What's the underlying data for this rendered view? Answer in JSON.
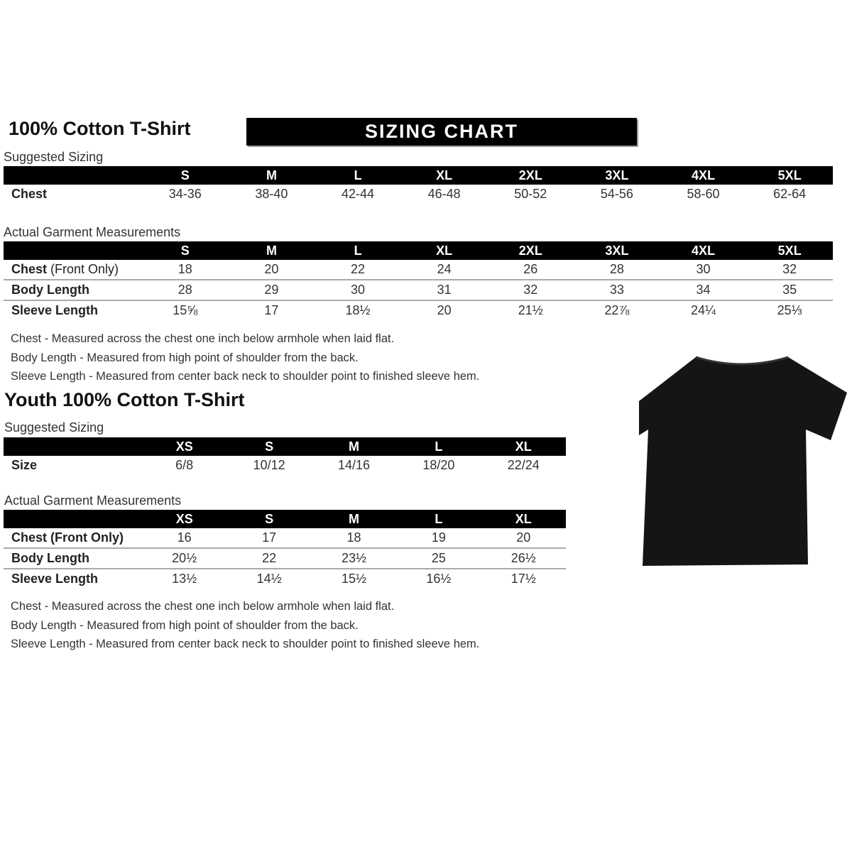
{
  "adult": {
    "title": "100% Cotton T-Shirt",
    "banner": "SIZING CHART",
    "suggested_label": "Suggested Sizing",
    "sizes": [
      "S",
      "M",
      "L",
      "XL",
      "2XL",
      "3XL",
      "4XL",
      "5XL"
    ],
    "suggested_rows": [
      {
        "label": "Chest",
        "values": [
          "34-36",
          "38-40",
          "42-44",
          "46-48",
          "50-52",
          "54-56",
          "58-60",
          "62-64"
        ]
      }
    ],
    "actual_label": "Actual Garment Measurements",
    "actual_rows": [
      {
        "label": "Chest",
        "label_suffix": " (Front Only)",
        "values": [
          "18",
          "20",
          "22",
          "24",
          "26",
          "28",
          "30",
          "32"
        ]
      },
      {
        "label": "Body Length",
        "label_suffix": "",
        "values": [
          "28",
          "29",
          "30",
          "31",
          "32",
          "33",
          "34",
          "35"
        ]
      },
      {
        "label": "Sleeve Length",
        "label_suffix": "",
        "values": [
          "15⅝",
          "17",
          "18½",
          "20",
          "21½",
          "22⅞",
          "24¼",
          "25⅓"
        ]
      }
    ],
    "notes": [
      "Chest - Measured across the chest one inch below armhole when laid flat.",
      "Body Length - Measured from high point of shoulder from the back.",
      "Sleeve Length - Measured from center back neck to shoulder point to finished sleeve hem."
    ]
  },
  "youth": {
    "title": "Youth 100% Cotton T-Shirt",
    "suggested_label": "Suggested Sizing",
    "sizes": [
      "XS",
      "S",
      "M",
      "L",
      "XL"
    ],
    "suggested_rows": [
      {
        "label": "Size",
        "values": [
          "6/8",
          "10/12",
          "14/16",
          "18/20",
          "22/24"
        ]
      }
    ],
    "actual_label": "Actual Garment Measurements",
    "actual_rows": [
      {
        "label": "Chest (Front Only)",
        "label_suffix": "",
        "values": [
          "16",
          "17",
          "18",
          "19",
          "20"
        ]
      },
      {
        "label": "Body Length",
        "label_suffix": "",
        "values": [
          "20½",
          "22",
          "23½",
          "25",
          "26½"
        ]
      },
      {
        "label": "Sleeve Length",
        "label_suffix": "",
        "values": [
          "13½",
          "14½",
          "15½",
          "16½",
          "17½"
        ]
      }
    ],
    "notes": [
      "Chest - Measured across the chest one inch below armhole when laid flat.",
      "Body Length - Measured from high point of shoulder from the back.",
      "Sleeve Length - Measured from center back neck to shoulder point to finished sleeve hem."
    ]
  },
  "tshirt_icon": "black-tshirt",
  "tshirt_color": "#151515"
}
